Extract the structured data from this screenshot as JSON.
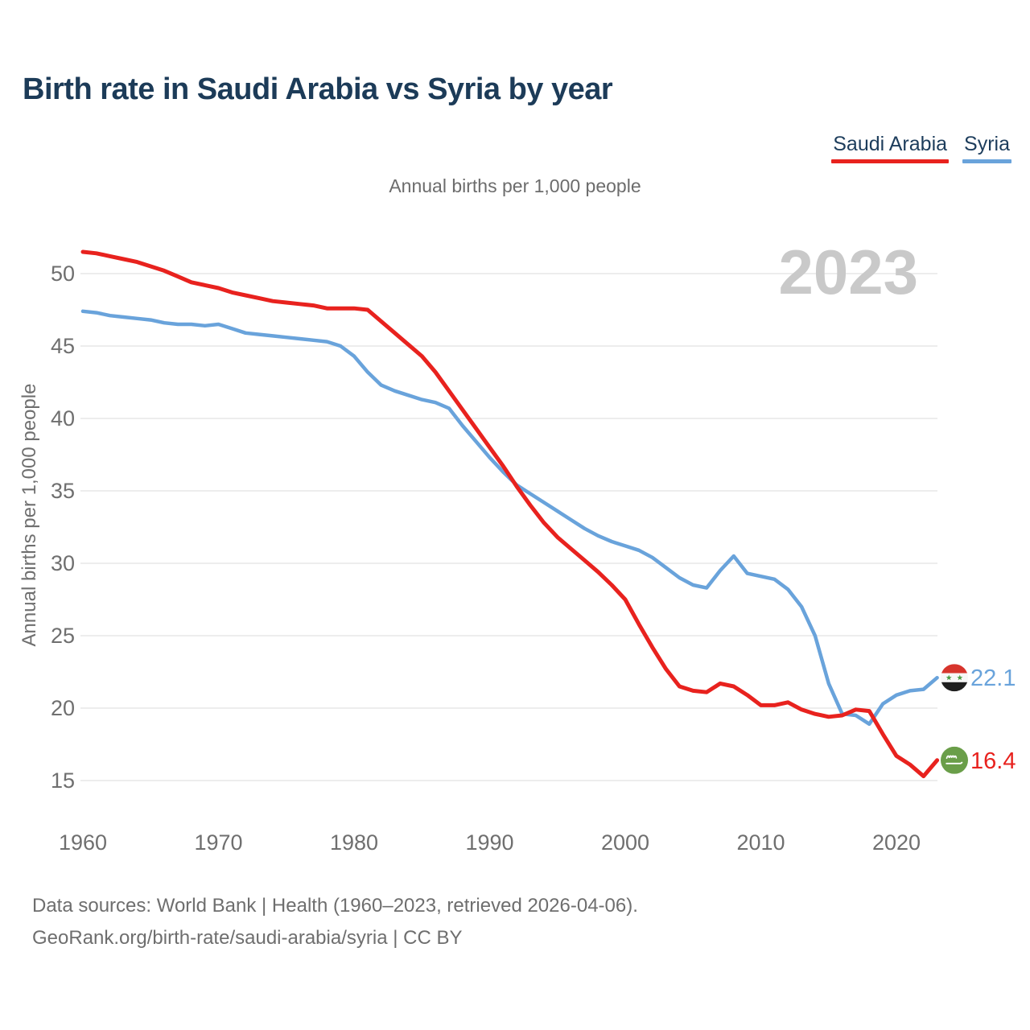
{
  "header": {
    "title": "Birth rate in Saudi Arabia vs Syria by year"
  },
  "legend": {
    "items": [
      {
        "label": "Saudi Arabia",
        "color": "#e8221e"
      },
      {
        "label": "Syria",
        "color": "#69a3db"
      }
    ]
  },
  "chart_data": {
    "type": "line",
    "title": "Birth rate in Saudi Arabia vs Syria by year",
    "subtitle": "Annual births per 1,000 people",
    "ylabel": "Annual births per 1,000 people",
    "watermark": "2023",
    "grid": "horizontal-only",
    "legend_position": "top-right",
    "x_start": 1960,
    "x_step": 1,
    "xlim": [
      1960,
      2023
    ],
    "ylim": [
      13.5,
      52.5
    ],
    "x_ticks": [
      1960,
      1970,
      1980,
      1990,
      2000,
      2010,
      2020
    ],
    "y_ticks": [
      15,
      20,
      25,
      30,
      35,
      40,
      45,
      50
    ],
    "series": [
      {
        "name": "Saudi Arabia",
        "color": "#e8221e",
        "flag": "saudi-arabia-flag-icon",
        "end_label": "16.4",
        "values": [
          51.5,
          51.4,
          51.2,
          51.0,
          50.8,
          50.5,
          50.2,
          49.8,
          49.4,
          49.2,
          49.0,
          48.7,
          48.5,
          48.3,
          48.1,
          48.0,
          47.9,
          47.8,
          47.6,
          47.6,
          47.6,
          47.5,
          46.7,
          45.9,
          45.1,
          44.3,
          43.2,
          41.9,
          40.6,
          39.3,
          38.0,
          36.7,
          35.3,
          34.0,
          32.8,
          31.8,
          31.0,
          30.2,
          29.4,
          28.5,
          27.5,
          25.8,
          24.2,
          22.7,
          21.5,
          21.2,
          21.1,
          21.7,
          21.5,
          20.9,
          20.2,
          20.2,
          20.4,
          19.9,
          19.6,
          19.4,
          19.5,
          19.9,
          19.8,
          18.2,
          16.7,
          16.1,
          15.3,
          16.4
        ]
      },
      {
        "name": "Syria",
        "color": "#69a3db",
        "flag": "syria-flag-icon",
        "end_label": "22.1",
        "values": [
          47.4,
          47.3,
          47.1,
          47.0,
          46.9,
          46.8,
          46.6,
          46.5,
          46.5,
          46.4,
          46.5,
          46.2,
          45.9,
          45.8,
          45.7,
          45.6,
          45.5,
          45.4,
          45.3,
          45.0,
          44.3,
          43.2,
          42.3,
          41.9,
          41.6,
          41.3,
          41.1,
          40.7,
          39.5,
          38.4,
          37.3,
          36.3,
          35.4,
          34.8,
          34.2,
          33.6,
          33.0,
          32.4,
          31.9,
          31.5,
          31.2,
          30.9,
          30.4,
          29.7,
          29.0,
          28.5,
          28.3,
          29.5,
          30.5,
          29.3,
          29.1,
          28.9,
          28.2,
          27.0,
          25.0,
          21.7,
          19.6,
          19.5,
          18.9,
          20.3,
          20.9,
          21.2,
          21.3,
          22.1
        ]
      }
    ]
  },
  "footer": {
    "line1": "Data sources: World Bank | Health (1960–2023, retrieved 2026-04-06).",
    "line2": "GeoRank.org/birth-rate/saudi-arabia/syria | CC BY"
  }
}
